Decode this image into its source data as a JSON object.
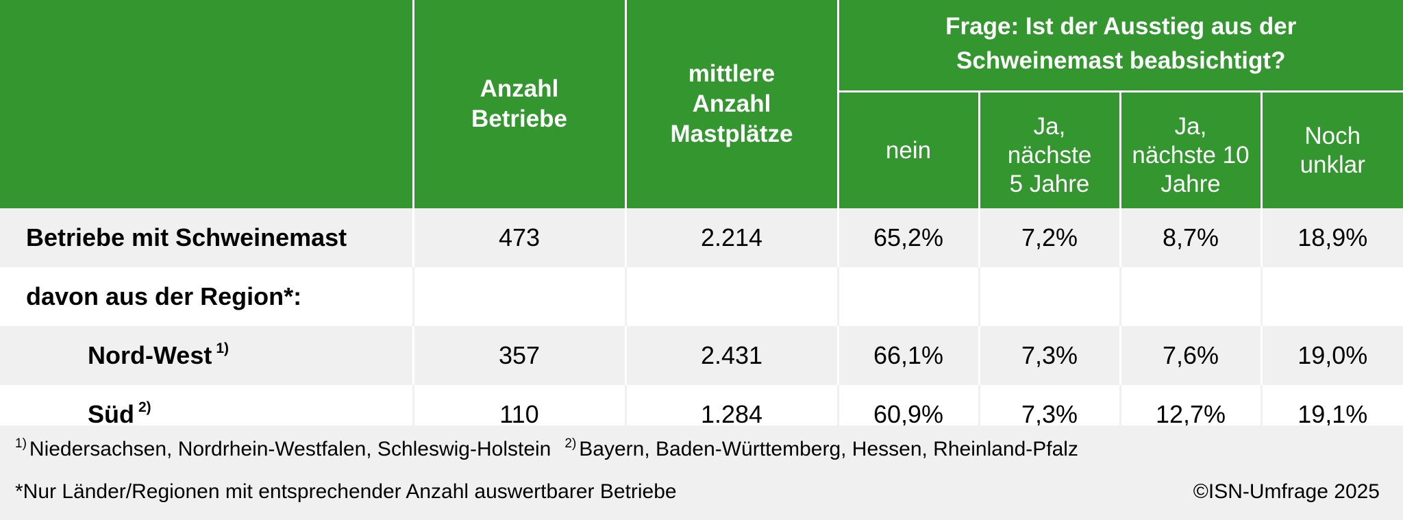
{
  "header": {
    "anzahl_betriebe": "Anzahl Betriebe",
    "mittlere_anzahl": "mittlere Anzahl Mastplätze",
    "frage": "Frage: Ist der Ausstieg aus der Schweinemast beabsichtigt?",
    "sub": [
      "nein",
      "Ja, nächste 5 Jahre",
      "Ja, nächste 10 Jahre",
      "Noch unklar"
    ]
  },
  "rows": [
    {
      "label": "Betriebe mit Schweinemast",
      "mark": "",
      "values": [
        "473",
        "2.214",
        "65,2%",
        "7,2%",
        "8,7%",
        "18,9%"
      ]
    },
    {
      "label": "davon aus der Region*:",
      "mark": "",
      "values": [
        "",
        "",
        "",
        "",
        "",
        ""
      ]
    },
    {
      "label": "Nord-West",
      "mark": "1)",
      "values": [
        "357",
        "2.431",
        "66,1%",
        "7,3%",
        "7,6%",
        "19,0%"
      ]
    },
    {
      "label": "Süd",
      "mark": "2)",
      "values": [
        "110",
        "1.284",
        "60,9%",
        "7,3%",
        "12,7%",
        "19,1%"
      ]
    }
  ],
  "footnotes": {
    "fn1_mark": "1)",
    "fn1_text": "Niedersachsen, Nordrhein-Westfalen, Schleswig-Holstein",
    "fn2_mark": "2)",
    "fn2_text": "Bayern, Baden-Württemberg, Hessen, Rheinland-Pfalz",
    "asterisk": "*Nur Länder/Regionen mit entsprechender Anzahl auswertbarer Betriebe",
    "copyright": "©ISN-Umfrage 2025"
  },
  "colors": {
    "header_green": "#33962f",
    "row_grey": "#f0f0f0"
  }
}
